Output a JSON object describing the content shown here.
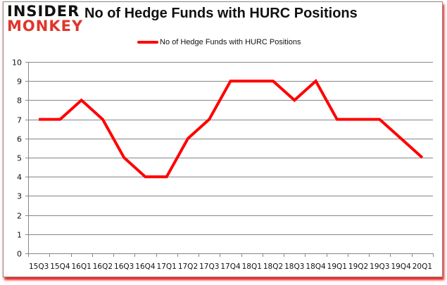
{
  "header": {
    "logo_line1": "INSIDER",
    "logo_line2": "MONKEY",
    "title": "No of Hedge Funds with HURC Positions"
  },
  "legend": {
    "label": "No of Hedge Funds with HURC Positions",
    "color": "#ff0000"
  },
  "colors": {
    "series": "#ff0000",
    "grid": "#868686",
    "logo_accent": "#e0352b",
    "shadow": "#e60000"
  },
  "chart_data": {
    "type": "line",
    "title": "No of Hedge Funds with HURC Positions",
    "xlabel": "",
    "ylabel": "",
    "categories": [
      "15Q3",
      "15Q4",
      "16Q1",
      "16Q2",
      "16Q3",
      "16Q4",
      "17Q1",
      "17Q2",
      "17Q3",
      "17Q4",
      "18Q1",
      "18Q2",
      "18Q3",
      "18Q4",
      "19Q1",
      "19Q2",
      "19Q3",
      "19Q4",
      "20Q1"
    ],
    "series": [
      {
        "name": "No of Hedge Funds with HURC Positions",
        "values": [
          7,
          7,
          8,
          7,
          5,
          4,
          4,
          6,
          7,
          9,
          9,
          9,
          8,
          9,
          7,
          7,
          7,
          6,
          5
        ]
      }
    ],
    "ylim": [
      0,
      10
    ],
    "yticks": [
      0,
      1,
      2,
      3,
      4,
      5,
      6,
      7,
      8,
      9,
      10
    ],
    "grid": true,
    "legend_position": "top"
  }
}
